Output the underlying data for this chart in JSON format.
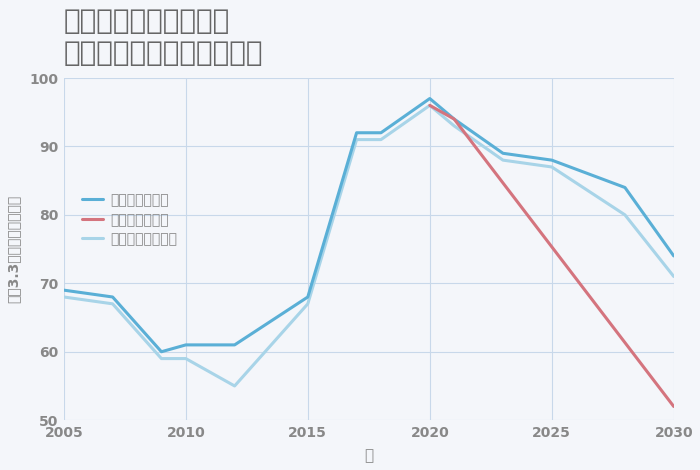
{
  "title": "千葉県成田市水の上の\n中古マンションの価格推移",
  "xlabel": "年",
  "ylabel": "平（3.3㎡）単価（万円）",
  "background_color": "#f4f6fa",
  "grid_color": "#c8d8ea",
  "title_color": "#666666",
  "axis_color": "#888888",
  "ylim": [
    50,
    100
  ],
  "yticks": [
    50,
    60,
    70,
    80,
    90,
    100
  ],
  "xlim": [
    2005,
    2030
  ],
  "xticks": [
    2005,
    2010,
    2015,
    2020,
    2025,
    2030
  ],
  "legend_labels": [
    "グッドシナリオ",
    "バッドシナリオ",
    "ノーマルシナリオ"
  ],
  "line_good": {
    "x": [
      2005,
      2007,
      2009,
      2010,
      2012,
      2015,
      2017,
      2018,
      2020,
      2021,
      2023,
      2025,
      2028,
      2030
    ],
    "y": [
      69,
      68,
      60,
      61,
      61,
      68,
      92,
      92,
      97,
      94,
      89,
      88,
      84,
      74
    ],
    "color": "#5aafd6",
    "linewidth": 2.2
  },
  "line_bad": {
    "x": [
      2020,
      2021,
      2030
    ],
    "y": [
      96,
      94,
      52
    ],
    "color": "#d4747e",
    "linewidth": 2.2
  },
  "line_normal": {
    "x": [
      2005,
      2007,
      2009,
      2010,
      2012,
      2015,
      2017,
      2018,
      2020,
      2021,
      2023,
      2025,
      2028,
      2030
    ],
    "y": [
      68,
      67,
      59,
      59,
      55,
      67,
      91,
      91,
      96,
      93,
      88,
      87,
      80,
      71
    ],
    "color": "#a8d4e8",
    "linewidth": 2.2
  }
}
